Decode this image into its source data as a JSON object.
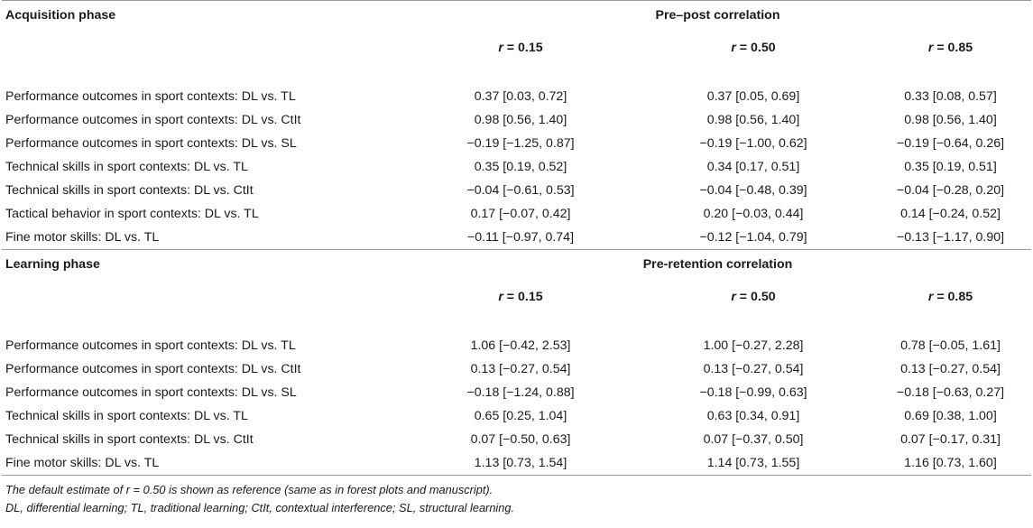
{
  "sections": [
    {
      "phase_label": "Acquisition phase",
      "correlation_label": "Pre–post correlation",
      "r_labels": [
        "r = 0.15",
        "r = 0.50",
        "r = 0.85"
      ],
      "rows": [
        {
          "label": "Performance outcomes in sport contexts: DL vs. TL",
          "values": [
            "0.37 [0.03, 0.72]",
            "0.37 [0.05, 0.69]",
            "0.33 [0.08, 0.57]"
          ]
        },
        {
          "label": "Performance outcomes in sport contexts: DL vs. CtIt",
          "values": [
            "0.98 [0.56, 1.40]",
            "0.98 [0.56, 1.40]",
            "0.98 [0.56, 1.40]"
          ]
        },
        {
          "label": "Performance outcomes in sport contexts: DL vs. SL",
          "values": [
            "−0.19 [−1.25, 0.87]",
            "−0.19 [−1.00, 0.62]",
            "−0.19 [−0.64, 0.26]"
          ]
        },
        {
          "label": "Technical skills in sport contexts: DL vs. TL",
          "values": [
            "0.35 [0.19, 0.52]",
            "0.34 [0.17, 0.51]",
            "0.35 [0.19, 0.51]"
          ]
        },
        {
          "label": "Technical skills in sport contexts: DL vs. CtIt",
          "values": [
            "−0.04 [−0.61, 0.53]",
            "−0.04 [−0.48, 0.39]",
            "−0.04 [−0.28, 0.20]"
          ]
        },
        {
          "label": "Tactical behavior in sport contexts: DL vs. TL",
          "values": [
            "0.17 [−0.07, 0.42]",
            "0.20 [−0.03, 0.44]",
            "0.14 [−0.24, 0.52]"
          ]
        },
        {
          "label": "Fine motor skills: DL vs. TL",
          "values": [
            "−0.11 [−0.97, 0.74]",
            "−0.12 [−1.04, 0.79]",
            "−0.13 [−1.17, 0.90]"
          ]
        }
      ]
    },
    {
      "phase_label": "Learning phase",
      "correlation_label": "Pre-retention correlation",
      "r_labels": [
        "r = 0.15",
        "r = 0.50",
        "r = 0.85"
      ],
      "rows": [
        {
          "label": "Performance outcomes in sport contexts: DL vs. TL",
          "values": [
            "1.06 [−0.42, 2.53]",
            "1.00 [−0.27, 2.28]",
            "0.78 [−0.05, 1.61]"
          ]
        },
        {
          "label": "Performance outcomes in sport contexts: DL vs. CtIt",
          "values": [
            "0.13 [−0.27, 0.54]",
            "0.13 [−0.27, 0.54]",
            "0.13 [−0.27, 0.54]"
          ]
        },
        {
          "label": "Performance outcomes in sport contexts: DL vs. SL",
          "values": [
            "−0.18 [−1.24, 0.88]",
            "−0.18 [−0.99, 0.63]",
            "−0.18 [−0.63, 0.27]"
          ]
        },
        {
          "label": "Technical skills in sport contexts: DL vs. TL",
          "values": [
            "0.65 [0.25, 1.04]",
            "0.63 [0.34, 0.91]",
            "0.69 [0.38, 1.00]"
          ]
        },
        {
          "label": "Technical skills in sport contexts: DL vs. CtIt",
          "values": [
            "0.07 [−0.50, 0.63]",
            "0.07 [−0.37, 0.50]",
            "0.07 [−0.17, 0.31]"
          ]
        },
        {
          "label": "Fine motor skills: DL vs. TL",
          "values": [
            "1.13 [0.73, 1.54]",
            "1.14 [0.73, 1.55]",
            "1.16 [0.73, 1.60]"
          ]
        }
      ]
    }
  ],
  "footnotes": [
    "The default estimate of r = 0.50 is shown as reference (same as in forest plots and manuscript).",
    "DL, differential learning; TL, traditional learning; CtIt, contextual interference; SL, structural learning."
  ]
}
